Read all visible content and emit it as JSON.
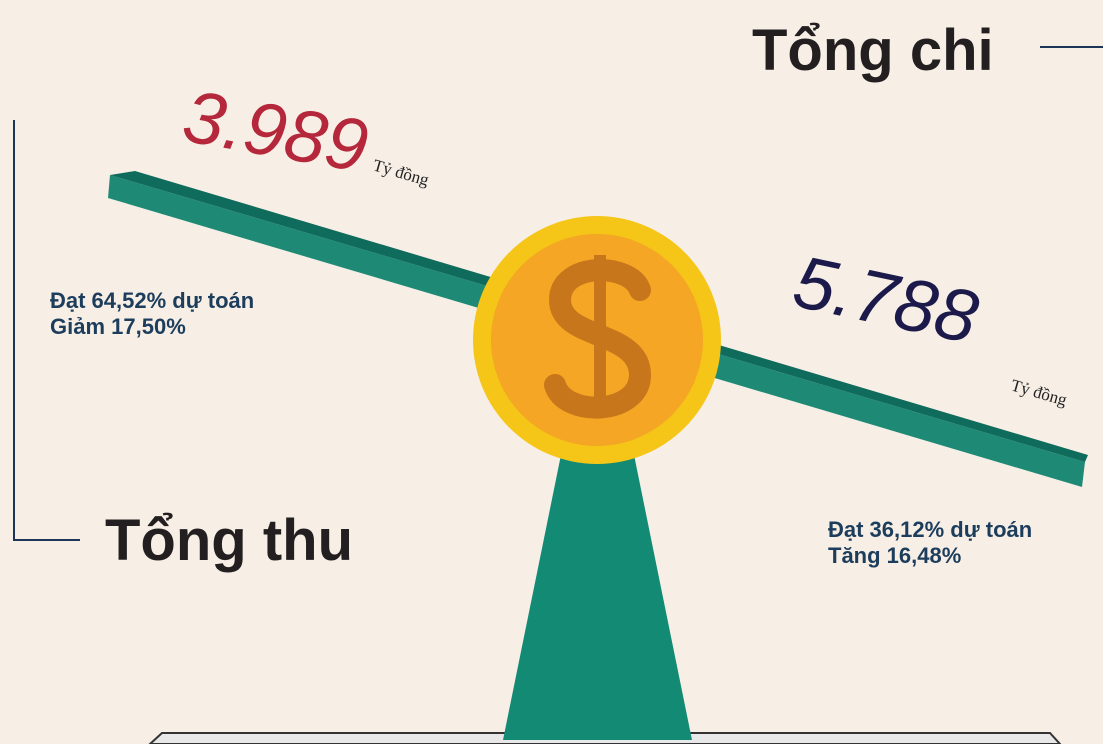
{
  "left": {
    "amount": "3.989",
    "unit": "Tỷ đồng",
    "lines": [
      "Đạt 64,52% dự toán",
      "Giảm 17,50%"
    ],
    "title": "Tổng thu"
  },
  "right": {
    "amount": "5.788",
    "unit": "Tỷ đồng",
    "lines": [
      "Đạt 36,12% dự toán",
      "Tăng 16,48%"
    ],
    "title": "Tổng chi"
  }
}
